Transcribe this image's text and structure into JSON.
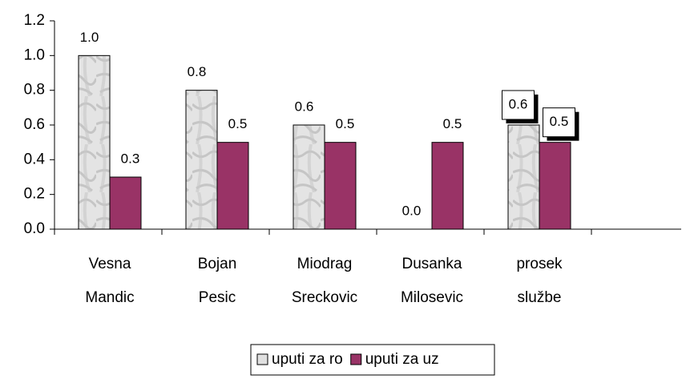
{
  "chart_data": {
    "type": "bar",
    "categories": [
      "Vesna Mandic",
      "Bojan Pesic",
      "Miodrag Sreckovic",
      "Dusanka Milosevic",
      "prosek službe"
    ],
    "series": [
      {
        "name": "uputi za ro",
        "color": "#d8d8d8",
        "values": [
          1.0,
          0.8,
          0.6,
          0,
          0.6
        ],
        "value_labels": [
          "1.0",
          "0.8",
          "0.6",
          "0.0",
          "0.6"
        ]
      },
      {
        "name": "uputi za uz",
        "color": "#993366",
        "values": [
          0.3,
          0.5,
          0.5,
          0.5,
          0.5
        ],
        "value_labels": [
          "0.3",
          "0.5",
          "0.5",
          "0.5",
          "0.5"
        ]
      }
    ],
    "ylim": [
      0,
      1.2
    ],
    "yticks": [
      {
        "value": 0,
        "label": "0.0"
      },
      0.2,
      0.4,
      0.6,
      0.8,
      {
        "value": 1,
        "label": "1.0"
      },
      1.2
    ],
    "legend": "bottom"
  }
}
